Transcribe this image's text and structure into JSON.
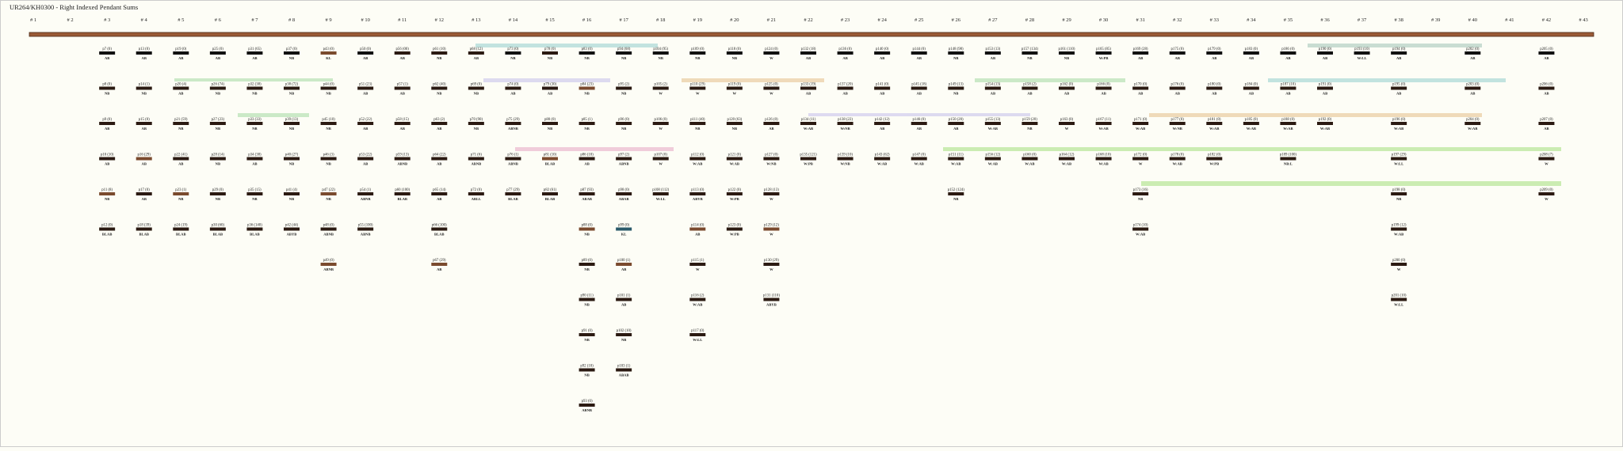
{
  "header": {
    "title": "UR264/KH0300 - Right Indexed Pendant Sums"
  },
  "columns": [
    {
      "header": "# 1",
      "cords": []
    },
    {
      "header": "# 2",
      "cords": []
    },
    {
      "header": "# 3",
      "cords": [
        [
          "p7 (0)",
          "AB",
          "#111111"
        ],
        [
          "p8 (0)",
          "NB",
          "#2b1a12"
        ],
        [
          "p9 (0)",
          "AB",
          "#2b1a12"
        ],
        [
          "p10 (10)",
          "AB",
          "#2b1a12"
        ],
        [
          "p11 (8)",
          "NB",
          "#7a4a2e"
        ],
        [
          "p12 (0)",
          "BLAB",
          "#2b1a12"
        ]
      ]
    },
    {
      "header": "# 4",
      "cords": [
        [
          "p13 (0)",
          "AB",
          "#111111"
        ],
        [
          "p14 (1)",
          "NB",
          "#2b1a12"
        ],
        [
          "p15 (0)",
          "AB",
          "#2b1a12"
        ],
        [
          "p16 (29)",
          "AB",
          "#7a4a2e"
        ],
        [
          "p17 (0)",
          "AB",
          "#2b1a12"
        ],
        [
          "p18 (39)",
          "BLAB",
          "#2b1a12"
        ]
      ]
    },
    {
      "header": "# 5",
      "cords": [
        [
          "p19 (0)",
          "AB",
          "#111111"
        ],
        [
          "p20 (4)",
          "AB",
          "#2b1a12"
        ],
        [
          "p21 (59)",
          "NB",
          "#2b1a12"
        ],
        [
          "p22 (41)",
          "AB",
          "#2b1a12"
        ],
        [
          "p23 (1)",
          "NB",
          "#7a4a2e"
        ],
        [
          "p24 (19)",
          "BLAB",
          "#2b1a12"
        ]
      ]
    },
    {
      "header": "# 6",
      "cords": [
        [
          "p25 (0)",
          "AB",
          "#111111"
        ],
        [
          "p26 (74)",
          "NB",
          "#2b1a12"
        ],
        [
          "p27 (23)",
          "NB",
          "#2b1a12"
        ],
        [
          "p28 (14)",
          "NB",
          "#2b1a12"
        ],
        [
          "p29 (0)",
          "NB",
          "#2b1a12"
        ],
        [
          "p30 (60)",
          "BLAB",
          "#2b1a12"
        ]
      ]
    },
    {
      "header": "# 7",
      "cords": [
        [
          "p31 (65)",
          "AB",
          "#111111"
        ],
        [
          "p32 (38)",
          "NB",
          "#2b1a12"
        ],
        [
          "p33 (33)",
          "NB",
          "#2b1a12"
        ],
        [
          "p34 (38)",
          "AB",
          "#2b1a12"
        ],
        [
          "p35 (15)",
          "NB",
          "#2b1a12"
        ],
        [
          "p36 (140)",
          "BLAB",
          "#2b1a12"
        ]
      ]
    },
    {
      "header": "# 8",
      "cords": [
        [
          "p37 (0)",
          "NB",
          "#111111"
        ],
        [
          "p38 (72)",
          "NB",
          "#2b1a12"
        ],
        [
          "p39 (13)",
          "NB",
          "#2b1a12"
        ],
        [
          "p40 (27)",
          "NB",
          "#2b1a12"
        ],
        [
          "p41 (4)",
          "NB",
          "#2b1a12"
        ],
        [
          "p42 (44)",
          "ABYB",
          "#2b1a12"
        ]
      ]
    },
    {
      "header": "# 9",
      "cords": [
        [
          "p43 (0)",
          "KL",
          "#7a4a2e"
        ],
        [
          "p44 (0)",
          "NB",
          "#2b1a12"
        ],
        [
          "p45 (10)",
          "NB",
          "#2b1a12"
        ],
        [
          "p46 (3)",
          "NB",
          "#2b1a12"
        ],
        [
          "p47 (22)",
          "NB",
          "#7a4a2e"
        ],
        [
          "p48 (0)",
          "ABNB",
          "#2b1a12"
        ],
        [
          "p49 (0)",
          "ABNB",
          "#7a4a2e"
        ]
      ]
    },
    {
      "header": "# 10",
      "cords": [
        [
          "p50 (0)",
          "AB",
          "#111111"
        ],
        [
          "p51 (23)",
          "AB",
          "#2b1a12"
        ],
        [
          "p52 (22)",
          "AB",
          "#2b1a12"
        ],
        [
          "p53 (22)",
          "AB",
          "#2b1a12"
        ],
        [
          "p54 (1)",
          "ABNB",
          "#2b1a12"
        ],
        [
          "p55 (100)",
          "ABNB",
          "#2b1a12"
        ]
      ]
    },
    {
      "header": "# 11",
      "cords": [
        [
          "p56 (00)",
          "AB",
          "#2b1a12"
        ],
        [
          "p57 (1)",
          "AB",
          "#2b1a12"
        ],
        [
          "p58 (15)",
          "AB",
          "#2b1a12"
        ],
        [
          "p59 (13)",
          "ABNB",
          "#2b1a12"
        ],
        [
          "p60 (100)",
          "BLAB",
          "#2b1a12"
        ]
      ]
    },
    {
      "header": "# 12",
      "cords": [
        [
          "p61 (10)",
          "NB",
          "#2b1a12"
        ],
        [
          "p62 (40)",
          "NB",
          "#2b1a12"
        ],
        [
          "p63 (2)",
          "AB",
          "#2b1a12"
        ],
        [
          "p64 (22)",
          "AB",
          "#2b1a12"
        ],
        [
          "p65 (14)",
          "AB",
          "#2b1a12"
        ],
        [
          "p66 (100)",
          "BLAB",
          "#2b1a12"
        ],
        [
          "p67 (29)",
          "AB",
          "#7a4a2e"
        ]
      ]
    },
    {
      "header": "# 13",
      "cords": [
        [
          "p68 (12)",
          "AB",
          "#2b1a12"
        ],
        [
          "p69 (0)",
          "NB",
          "#2b1a12"
        ],
        [
          "p70 (90)",
          "NB",
          "#2b1a12"
        ],
        [
          "p71 (6)",
          "ABNB",
          "#2b1a12"
        ],
        [
          "p72 (0)",
          "ABLL",
          "#2b1a12"
        ]
      ]
    },
    {
      "header": "# 14",
      "cords": [
        [
          "p73 (0)",
          "NB",
          "#111111"
        ],
        [
          "p74 (0)",
          "AB",
          "#2b1a12"
        ],
        [
          "p75 (29)",
          "ABNB",
          "#2b1a12"
        ],
        [
          "p76 (1)",
          "ABNB",
          "#2b1a12"
        ],
        [
          "p77 (29)",
          "BLAB",
          "#2b1a12"
        ]
      ]
    },
    {
      "header": "# 15",
      "cords": [
        [
          "p78 (0)",
          "NB",
          "#2b1a12"
        ],
        [
          "p79 (30)",
          "AB",
          "#2b1a12"
        ],
        [
          "p80 (0)",
          "NB",
          "#2b1a12"
        ],
        [
          "p81 (10)",
          "BLAB",
          "#7a4a2e"
        ],
        [
          "p82 (61)",
          "BLAB",
          "#2b1a12"
        ]
      ]
    },
    {
      "header": "# 16",
      "cords": [
        [
          "p83 (0)",
          "NB",
          "#111111"
        ],
        [
          "p84 (23)",
          "NB",
          "#7a4a2e"
        ],
        [
          "p85 (1)",
          "NB",
          "#2b1a12"
        ],
        [
          "p86 (10)",
          "AB",
          "#2b1a12"
        ],
        [
          "p87 (93)",
          "ABAB",
          "#2b1a12"
        ],
        [
          "p88 (0)",
          "NB",
          "#7a4a2e"
        ],
        [
          "p89 (0)",
          "NB",
          "#2b1a12"
        ],
        [
          "p90 (11)",
          "NB",
          "#2b1a12"
        ],
        [
          "p91 (0)",
          "NB",
          "#2b1a12"
        ],
        [
          "p92 (10)",
          "NB",
          "#2b1a12"
        ],
        [
          "p93 (0)",
          "ABNB",
          "#2b1a12"
        ]
      ]
    },
    {
      "header": "# 17",
      "cords": [
        [
          "p94 (68)",
          "NB",
          "#111111"
        ],
        [
          "p95 (2)",
          "NB",
          "#2b1a12"
        ],
        [
          "p96 (0)",
          "NB",
          "#2b1a12"
        ],
        [
          "p97 (2)",
          "ABNB",
          "#2b1a12"
        ],
        [
          "p98 (0)",
          "ABAB",
          "#2b1a12"
        ],
        [
          "p99 (0)",
          "KL",
          "#2b5a6a"
        ],
        [
          "p100 (1)",
          "AB",
          "#7a4a2e"
        ],
        [
          "p101 (1)",
          "AB",
          "#2b1a12"
        ],
        [
          "p102 (10)",
          "NB",
          "#2b1a12"
        ],
        [
          "p103 (1)",
          "ABAB",
          "#2b1a12"
        ]
      ]
    },
    {
      "header": "# 18",
      "cords": [
        [
          "p104 (95)",
          "NB",
          "#111111"
        ],
        [
          "p105 (2)",
          "W",
          "#2b1a12"
        ],
        [
          "p106 (0)",
          "W",
          "#2b1a12"
        ],
        [
          "p107 (0)",
          "W",
          "#2b1a12"
        ],
        [
          "p108 (112)",
          "W:LL",
          "#2b1a12"
        ]
      ]
    },
    {
      "header": "# 19",
      "cords": [
        [
          "p109 (0)",
          "NB",
          "#111111"
        ],
        [
          "p110 (29)",
          "W",
          "#2b1a12"
        ],
        [
          "p111 (40)",
          "NB",
          "#2b1a12"
        ],
        [
          "p112 (0)",
          "W:AB",
          "#2b1a12"
        ],
        [
          "p113 (0)",
          "ABYB",
          "#2b1a12"
        ],
        [
          "p114 (0)",
          "AB",
          "#7a4a2e"
        ],
        [
          "p115 (1)",
          "W",
          "#2b1a12"
        ],
        [
          "p116 (2)",
          "W:AB",
          "#2b1a12"
        ],
        [
          "p117 (0)",
          "W:LL",
          "#2b1a12"
        ]
      ]
    },
    {
      "header": "# 20",
      "cords": [
        [
          "p118 (0)",
          "NB",
          "#111111"
        ],
        [
          "p119 (0)",
          "W",
          "#2b1a12"
        ],
        [
          "p120 (63)",
          "NB",
          "#2b1a12"
        ],
        [
          "p121 (0)",
          "W:AB",
          "#2b1a12"
        ],
        [
          "p122 (0)",
          "W:PB",
          "#2b1a12"
        ],
        [
          "p123 (0)",
          "W:PB",
          "#2b1a12"
        ]
      ]
    },
    {
      "header": "# 21",
      "cords": [
        [
          "p124 (0)",
          "W",
          "#111111"
        ],
        [
          "p125 (0)",
          "W",
          "#2b1a12"
        ],
        [
          "p126 (0)",
          "AB",
          "#2b1a12"
        ],
        [
          "p127 (0)",
          "W:NB",
          "#2b1a12"
        ],
        [
          "p128 (13)",
          "W",
          "#2b1a12"
        ],
        [
          "p129 (12)",
          "W",
          "#7a4a2e"
        ],
        [
          "p130 (29)",
          "W",
          "#2b1a12"
        ],
        [
          "p131 (110)",
          "ABYB",
          "#2b1a12"
        ]
      ]
    },
    {
      "header": "# 22",
      "cords": [
        [
          "p132 (18)",
          "AB",
          "#111111"
        ],
        [
          "p133 (19)",
          "AB",
          "#2b1a12"
        ],
        [
          "p134 (11)",
          "W:AB",
          "#2b1a12"
        ],
        [
          "p135 (121)",
          "W:PB",
          "#2b1a12"
        ]
      ]
    },
    {
      "header": "# 23",
      "cords": [
        [
          "p136 (0)",
          "AB",
          "#111111"
        ],
        [
          "p137 (20)",
          "AB",
          "#2b1a12"
        ],
        [
          "p138 (22)",
          "W:NB",
          "#2b1a12"
        ],
        [
          "p139 (10)",
          "W:NB",
          "#2b1a12"
        ]
      ]
    },
    {
      "header": "# 24",
      "cords": [
        [
          "p140 (0)",
          "AB",
          "#111111"
        ],
        [
          "p141 (0)",
          "AB",
          "#2b1a12"
        ],
        [
          "p142 (12)",
          "AB",
          "#2b1a12"
        ],
        [
          "p143 (62)",
          "W:AB",
          "#2b1a12"
        ]
      ]
    },
    {
      "header": "# 25",
      "cords": [
        [
          "p144 (0)",
          "AB",
          "#111111"
        ],
        [
          "p145 (18)",
          "AB",
          "#2b1a12"
        ],
        [
          "p146 (0)",
          "AB",
          "#2b1a12"
        ],
        [
          "p147 (0)",
          "W:AB",
          "#2b1a12"
        ]
      ]
    },
    {
      "header": "# 26",
      "cords": [
        [
          "p148 (98)",
          "NB",
          "#111111"
        ],
        [
          "p149 (13)",
          "NB",
          "#2b1a12"
        ],
        [
          "p150 (20)",
          "AB",
          "#2b1a12"
        ],
        [
          "p151 (11)",
          "W:AB",
          "#2b1a12"
        ],
        [
          "p152 (124)",
          "NB",
          "#2b1a12"
        ]
      ]
    },
    {
      "header": "# 27",
      "cords": [
        [
          "p153 (13)",
          "AB",
          "#111111"
        ],
        [
          "p154 (13)",
          "AB",
          "#2b1a12"
        ],
        [
          "p155 (13)",
          "W:AB",
          "#2b1a12"
        ],
        [
          "p156 (12)",
          "W:AB",
          "#2b1a12"
        ]
      ]
    },
    {
      "header": "# 28",
      "cords": [
        [
          "p157 (134)",
          "NB",
          "#111111"
        ],
        [
          "p158 (2)",
          "AB",
          "#2b1a12"
        ],
        [
          "p159 (20)",
          "NB",
          "#2b1a12"
        ],
        [
          "p160 (0)",
          "W:AB",
          "#2b1a12"
        ]
      ]
    },
    {
      "header": "# 29",
      "cords": [
        [
          "p161 (110)",
          "NB",
          "#111111"
        ],
        [
          "p162 (0)",
          "AB",
          "#2b1a12"
        ],
        [
          "p163 (0)",
          "W",
          "#2b1a12"
        ],
        [
          "p164 (12)",
          "W:AB",
          "#2b1a12"
        ]
      ]
    },
    {
      "header": "# 30",
      "cords": [
        [
          "p165 (85)",
          "W:PB",
          "#111111"
        ],
        [
          "p166 (0)",
          "AB",
          "#2b1a12"
        ],
        [
          "p167 (11)",
          "W:AB",
          "#2b1a12"
        ],
        [
          "p168 (10)",
          "W:AB",
          "#2b1a12"
        ]
      ]
    },
    {
      "header": "# 31",
      "cords": [
        [
          "p169 (28)",
          "AB",
          "#111111"
        ],
        [
          "p170 (0)",
          "AB",
          "#2b1a12"
        ],
        [
          "p171 (0)",
          "W:AB",
          "#2b1a12"
        ],
        [
          "p172 (0)",
          "W",
          "#2b1a12"
        ],
        [
          "p173 (16)",
          "NB",
          "#2b1a12"
        ],
        [
          "p174 (10)",
          "W:AB",
          "#2b1a12"
        ]
      ]
    },
    {
      "header": "# 32",
      "cords": [
        [
          "p175 (0)",
          "AB",
          "#111111"
        ],
        [
          "p176 (0)",
          "AB",
          "#2b1a12"
        ],
        [
          "p177 (0)",
          "W:NB",
          "#2b1a12"
        ],
        [
          "p178 (0)",
          "W:AB",
          "#2b1a12"
        ]
      ]
    },
    {
      "header": "# 33",
      "cords": [
        [
          "p179 (0)",
          "AB",
          "#111111"
        ],
        [
          "p180 (0)",
          "AB",
          "#2b1a12"
        ],
        [
          "p181 (0)",
          "W:AB",
          "#2b1a12"
        ],
        [
          "p182 (0)",
          "W:PB",
          "#2b1a12"
        ]
      ]
    },
    {
      "header": "# 34",
      "cords": [
        [
          "p183 (0)",
          "AB",
          "#111111"
        ],
        [
          "p184 (0)",
          "AB",
          "#2b1a12"
        ],
        [
          "p185 (0)",
          "W:AB",
          "#2b1a12"
        ]
      ]
    },
    {
      "header": "# 35",
      "cords": [
        [
          "p186 (0)",
          "AB",
          "#111111"
        ],
        [
          "p187 (10)",
          "AB",
          "#2b1a12"
        ],
        [
          "p188 (0)",
          "W:AB",
          "#2b1a12"
        ],
        [
          "p189 (100)",
          "NB:L",
          "#2b1a12"
        ]
      ]
    },
    {
      "header": "# 36",
      "cords": [
        [
          "p190 (0)",
          "AB",
          "#111111"
        ],
        [
          "p191 (0)",
          "AB",
          "#2b1a12"
        ],
        [
          "p192 (0)",
          "W:AB",
          "#2b1a12"
        ]
      ]
    },
    {
      "header": "# 37",
      "cords": [
        [
          "p193 (10)",
          "W:LL",
          "#111111"
        ]
      ]
    },
    {
      "header": "# 38",
      "cords": [
        [
          "p194 (0)",
          "AB",
          "#111111"
        ],
        [
          "p195 (0)",
          "AB",
          "#2b1a12"
        ],
        [
          "p196 (0)",
          "W:AB",
          "#2b1a12"
        ],
        [
          "p197 (29)",
          "W:LL",
          "#2b1a12"
        ],
        [
          "p198 (0)",
          "NB",
          "#2b1a12"
        ],
        [
          "p199 (12)",
          "W:AB",
          "#2b1a12"
        ],
        [
          "p200 (0)",
          "W",
          "#2b1a12"
        ],
        [
          "p201 (10)",
          "W:LL",
          "#2b1a12"
        ]
      ]
    },
    {
      "header": "# 39",
      "cords": []
    },
    {
      "header": "# 40",
      "cords": [
        [
          "p202 (0)",
          "AB",
          "#111111"
        ],
        [
          "p203 (0)",
          "AB",
          "#2b1a12"
        ],
        [
          "p204 (0)",
          "W:AB",
          "#2b1a12"
        ]
      ]
    },
    {
      "header": "# 41",
      "cords": []
    },
    {
      "header": "# 42",
      "cords": [
        [
          "p205 (0)",
          "AB",
          "#111111"
        ],
        [
          "p206 (0)",
          "AB",
          "#2b1a12"
        ],
        [
          "p207 (0)",
          "AB",
          "#2b1a12"
        ],
        [
          "p208 (7)",
          "W",
          "#2b1a12"
        ],
        [
          "p209 (0)",
          "W",
          "#2b1a12"
        ]
      ]
    },
    {
      "header": "# 43",
      "cords": []
    }
  ]
}
